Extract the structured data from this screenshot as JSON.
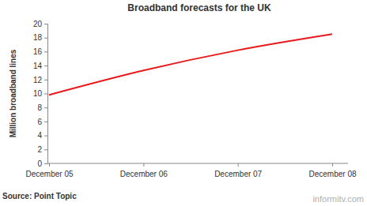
{
  "chart_data": {
    "type": "line",
    "title": "Broadband forecasts for the UK",
    "y_label": "Million broadband lines",
    "categories": [
      "December 05",
      "December 06",
      "December 07",
      "December 08"
    ],
    "values": [
      9.8,
      13.3,
      16.2,
      18.5
    ],
    "color": "#e8191c",
    "ylim": [
      0,
      20
    ],
    "yticks": [
      0,
      2,
      4,
      6,
      8,
      10,
      12,
      14,
      16,
      18,
      20
    ],
    "grid": false,
    "annotations": [
      "Source: Point Topic",
      "informitv.com"
    ]
  }
}
